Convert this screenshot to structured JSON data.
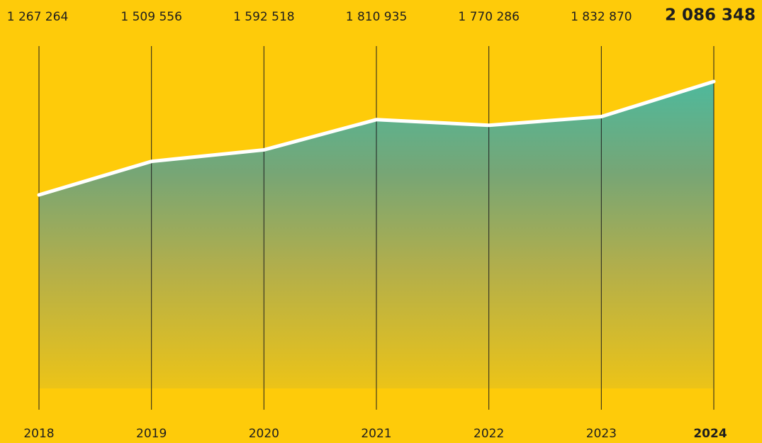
{
  "chart_data": {
    "type": "line",
    "categories": [
      "2018",
      "2019",
      "2020",
      "2021",
      "2022",
      "2023",
      "2024"
    ],
    "values": [
      1267264,
      1509556,
      1592518,
      1810935,
      1770286,
      1832870,
      2086348
    ],
    "value_labels": [
      "1 267 264",
      "1 509 556",
      "1 592 518",
      "1 810 935",
      "1 770 286",
      "1 832 870",
      "2 086 348"
    ],
    "color": "#ffffff"
  }
}
